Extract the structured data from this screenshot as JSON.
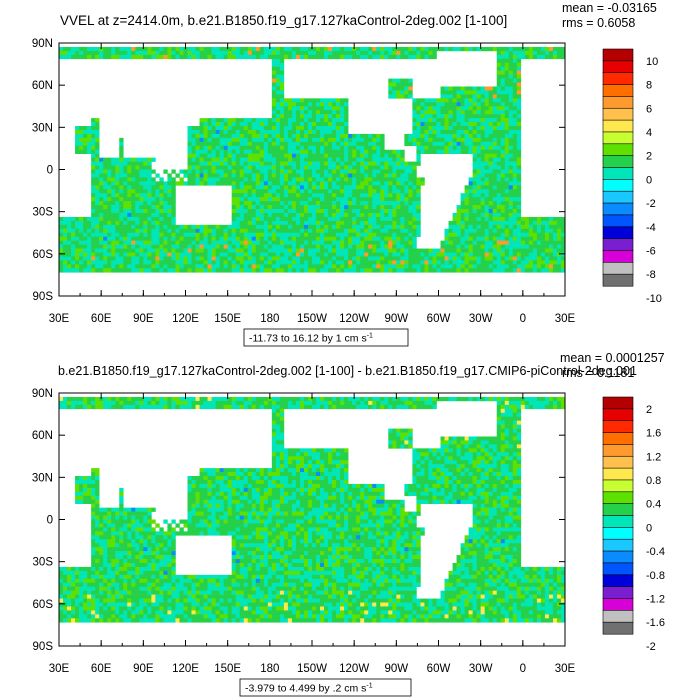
{
  "chart_data": [
    {
      "type": "heatmap",
      "title": "VVEL at z=2414.0m, b.e21.B1850.f19_g17.127kaControl-2deg.002 [1-100]",
      "stats": {
        "mean": "mean = -0.03165",
        "rms": "rms = 0.6058"
      },
      "x_ticks": [
        "30E",
        "60E",
        "90E",
        "120E",
        "150E",
        "180",
        "150W",
        "120W",
        "90W",
        "60W",
        "30W",
        "0",
        "30E"
      ],
      "y_ticks": [
        "90N",
        "60N",
        "30N",
        "0",
        "30S",
        "60S",
        "90S"
      ],
      "colorbar": {
        "labels": [
          "10",
          "8",
          "6",
          "4",
          "2",
          "0",
          "-2",
          "-4",
          "-6",
          "-8",
          "-10"
        ],
        "colors": [
          "#b40000",
          "#e60000",
          "#ff2a00",
          "#ff6f00",
          "#ff9a2e",
          "#ffc04d",
          "#ffe84d",
          "#c8ff33",
          "#5ee000",
          "#25d04a",
          "#00e6b8",
          "#00ffff",
          "#1ac8ff",
          "#0a8cff",
          "#0055ff",
          "#0000d8",
          "#7a1fd0",
          "#d800d8",
          "#c0c0c0",
          "#707070"
        ]
      },
      "range_label": "-11.73 to 16.12 by 1 cm s",
      "range_unit_exp": "-1"
    },
    {
      "type": "heatmap",
      "title": "b.e21.B1850.f19_g17.127kaControl-2deg.002 [1-100] - b.e21.B1850.f19_g17.CMIP6-piControl-2deg.001",
      "stats": {
        "mean": "mean = 0.0001257",
        "rms": "rms = 0.1181"
      },
      "x_ticks": [
        "30E",
        "60E",
        "90E",
        "120E",
        "150E",
        "180",
        "150W",
        "120W",
        "90W",
        "60W",
        "30W",
        "0",
        "30E"
      ],
      "y_ticks": [
        "90N",
        "60N",
        "30N",
        "0",
        "30S",
        "60S",
        "90S"
      ],
      "colorbar": {
        "labels": [
          "2",
          "1.6",
          "1.2",
          "0.8",
          "0.4",
          "0",
          "-0.4",
          "-0.8",
          "-1.2",
          "-1.6",
          "-2"
        ],
        "colors": [
          "#b40000",
          "#e60000",
          "#ff2a00",
          "#ff6f00",
          "#ff9a2e",
          "#ffc04d",
          "#ffe84d",
          "#c8ff33",
          "#5ee000",
          "#25d04a",
          "#00e6b8",
          "#00ffff",
          "#1ac8ff",
          "#0a8cff",
          "#0055ff",
          "#0000d8",
          "#7a1fd0",
          "#d800d8",
          "#c0c0c0",
          "#707070"
        ]
      },
      "range_label": "-3.979 to 4.499 by .2 cm s",
      "range_unit_exp": "-1"
    }
  ]
}
